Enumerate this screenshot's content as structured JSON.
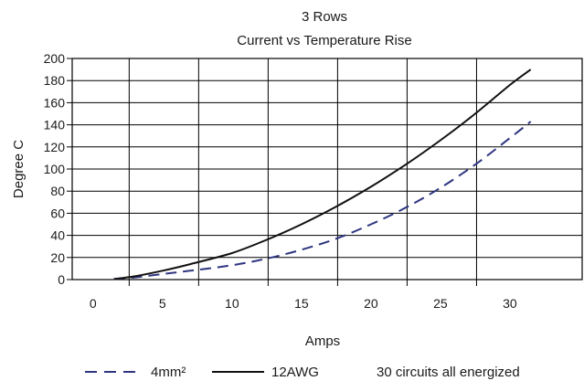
{
  "chart_data": {
    "type": "line",
    "title": "3 Rows",
    "subtitle": "Current vs Temperature Rise",
    "xlabel": "Amps",
    "ylabel": "Degree C",
    "xlim": [
      -1.5,
      35.2
    ],
    "ylim": [
      0,
      200
    ],
    "x_ticks": [
      0,
      5,
      10,
      15,
      20,
      25,
      30
    ],
    "y_ticks": [
      0,
      20,
      40,
      60,
      80,
      100,
      120,
      140,
      160,
      180,
      200
    ],
    "vertical_grid": [
      2.6,
      7.6,
      12.6,
      17.6,
      22.6,
      27.6
    ],
    "grid": true,
    "legend_position": "bottom",
    "series": [
      {
        "name": "4mm²",
        "style": "dashed",
        "color": "#2e3580",
        "points": [
          [
            1.5,
            0.5
          ],
          [
            3,
            2
          ],
          [
            5,
            5
          ],
          [
            7,
            8
          ],
          [
            10,
            13
          ],
          [
            12.5,
            19
          ],
          [
            15,
            27
          ],
          [
            17.5,
            37
          ],
          [
            20,
            50
          ],
          [
            22.5,
            65
          ],
          [
            25,
            83
          ],
          [
            27.5,
            104
          ],
          [
            30,
            128
          ],
          [
            31.5,
            143
          ]
        ]
      },
      {
        "name": "12AWG",
        "style": "solid",
        "color": "#111111",
        "points": [
          [
            1.5,
            0.5
          ],
          [
            3,
            3
          ],
          [
            5,
            8
          ],
          [
            7,
            14
          ],
          [
            10,
            24
          ],
          [
            12.5,
            36
          ],
          [
            15,
            50
          ],
          [
            17.5,
            66
          ],
          [
            20,
            84
          ],
          [
            22.5,
            104
          ],
          [
            25,
            126
          ],
          [
            27.5,
            150
          ],
          [
            30,
            176
          ],
          [
            31.5,
            190
          ]
        ]
      }
    ],
    "annotation": "30 circuits all energized"
  }
}
